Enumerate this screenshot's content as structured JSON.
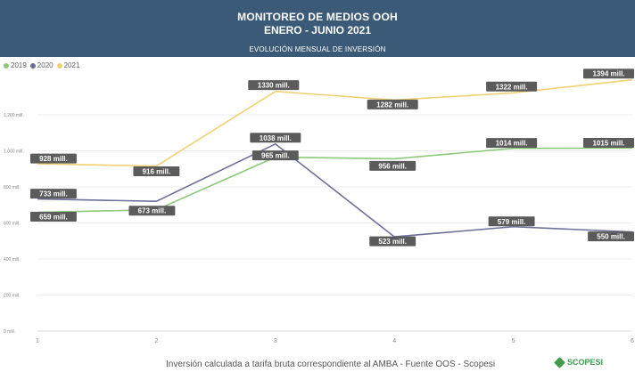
{
  "header": {
    "title_line1": "MONITOREO DE MEDIOS OOH",
    "title_line2": "ENERO - JUNIO 2021",
    "subtitle": "EVOLUCIÓN MENSUAL DE INVERSIÓN"
  },
  "colors": {
    "header_bg": "#3b5a78",
    "s2019": "#8cc97a",
    "s2020": "#6e6e9a",
    "s2021": "#f0d173",
    "label_bg": "#5b5b5b"
  },
  "footer": {
    "source": "Inversión calculada a tarifa bruta correspondiente al AMBA - Fuente OOS - Scopesi",
    "logo_text": "SCOPESI"
  },
  "chart_data": {
    "type": "line",
    "x": [
      1,
      2,
      3,
      4,
      5,
      6
    ],
    "yticks": [
      "0 mill.",
      "200 mill.",
      "400 mill.",
      "600 mill.",
      "800 mill.",
      "1.000 mill.",
      "1.200 mill."
    ],
    "ylim": [
      0,
      1400
    ],
    "grid": true,
    "legend_position": "top-left",
    "series": [
      {
        "name": "2019",
        "values": [
          659,
          673,
          965,
          956,
          1014,
          1015
        ],
        "labels": [
          "659 mill.",
          "673 mill.",
          "965 mill.",
          "956 mill.",
          "1014 mill.",
          "1015 mill."
        ]
      },
      {
        "name": "2020",
        "values": [
          733,
          720,
          1038,
          523,
          579,
          550
        ],
        "labels": [
          "733 mill.",
          "",
          "1038 mill.",
          "523 mill.",
          "579 mill.",
          "550 mill."
        ]
      },
      {
        "name": "2021",
        "values": [
          928,
          916,
          1330,
          1282,
          1322,
          1394
        ],
        "labels": [
          "928 mill.",
          "916 mill.",
          "1330 mill.",
          "1282 mill.",
          "1322 mill.",
          "1394 mill."
        ]
      }
    ]
  }
}
